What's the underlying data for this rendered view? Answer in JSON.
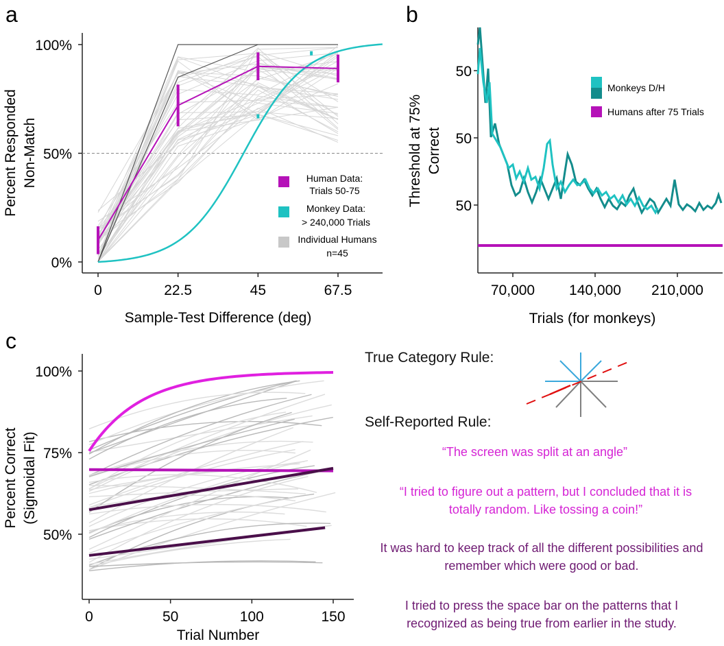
{
  "panel_labels": {
    "a": "a",
    "b": "b",
    "c": "c"
  },
  "colors": {
    "human": "#b512b8",
    "monkey": "#1fc2c2",
    "monkey_dark": "#138c8c",
    "individual": "#c8c8c8",
    "magenta_bright": "#e020e0",
    "dark_purple": "#4a0f4a",
    "quote_magenta": "#d524d5",
    "quote_purple": "#6e1a72",
    "red_line": "#e01010",
    "blue_line": "#3aa8dc",
    "gray_line": "#808080"
  },
  "chart_data": [
    {
      "panel": "a",
      "type": "line",
      "xlabel": "Sample-Test Difference (deg)",
      "ylabel": "Percent Responded Non-Match",
      "x_ticks": [
        "0",
        "22.5",
        "45",
        "67.5"
      ],
      "y_ticks": [
        "0%",
        "50%",
        "100%"
      ],
      "xlim": [
        -5,
        80
      ],
      "ylim": [
        0,
        100
      ],
      "reference_line": 50,
      "series": [
        {
          "name": "Human Data: Trials 50-75",
          "x": [
            0,
            22.5,
            45,
            67.5
          ],
          "y": [
            10,
            72,
            90,
            89
          ],
          "err": [
            4,
            6,
            4,
            4
          ]
        },
        {
          "name": "Monkey Data: > 240,000 Trials",
          "x": [
            0,
            22.5,
            45,
            60
          ],
          "y": [
            0,
            10,
            67,
            96
          ],
          "type": "sigmoid_fit"
        }
      ],
      "individual_lines_count": 45,
      "legend": [
        {
          "line1": "Human Data:",
          "line2": "Trials 50-75",
          "color_key": "human"
        },
        {
          "line1": "Monkey Data:",
          "line2": "> 240,000 Trials",
          "color_key": "monkey"
        },
        {
          "line1": "Individual Humans",
          "line2": "n=45",
          "color_key": "individual"
        }
      ]
    },
    {
      "panel": "b",
      "type": "line",
      "xlabel": "Trials (for monkeys)",
      "ylabel_line1": "Threshold at 75%",
      "ylabel_line2": "Correct",
      "x_ticks": [
        "70,000",
        "140,000",
        "210,000"
      ],
      "y_ticks": [
        "50",
        "50",
        "50"
      ],
      "legend": [
        {
          "label": "Monkeys D/H",
          "color_key": "monkey"
        },
        {
          "label": "Humans after 75 Trials",
          "color_key": "human"
        }
      ]
    },
    {
      "panel": "c",
      "type": "line",
      "xlabel": "Trial Number",
      "ylabel_line1": "Percent Correct",
      "ylabel_line2": "(Sigmoidal Fit)",
      "x_ticks": [
        "0",
        "50",
        "100",
        "150"
      ],
      "y_ticks": [
        "50%",
        "75%",
        "100%"
      ],
      "xlim": [
        -3,
        158
      ],
      "ylim": [
        35,
        104
      ],
      "highlighted_series": [
        {
          "x": [
            0,
            150
          ],
          "y": [
            75.5,
            99.8
          ],
          "shape": "saturating",
          "color_key": "magenta_bright"
        },
        {
          "x": [
            0,
            150
          ],
          "y": [
            69.8,
            69.4
          ],
          "color_key": "human"
        },
        {
          "x": [
            0,
            150
          ],
          "y": [
            57.5,
            70.2
          ],
          "color_key": "dark_purple"
        },
        {
          "x": [
            0,
            145
          ],
          "y": [
            43.5,
            52
          ],
          "color_key": "dark_purple"
        }
      ]
    }
  ],
  "rules": {
    "true_title": "True Category Rule:",
    "self_title": "Self-Reported Rule:"
  },
  "quotes": [
    {
      "text": "“The screen was split at an angle”",
      "color_key": "quote_magenta"
    },
    {
      "text": "“I tried to figure out a pattern, but I concluded that it is totally random. Like tossing a coin!”",
      "color_key": "quote_magenta"
    },
    {
      "text": "It was hard to keep track of all the different possibilities and remember which were good or bad.",
      "color_key": "quote_purple"
    },
    {
      "text": "I tried to press the space bar on the patterns that I recognized as being true from earlier in the study.",
      "color_key": "quote_purple"
    }
  ]
}
